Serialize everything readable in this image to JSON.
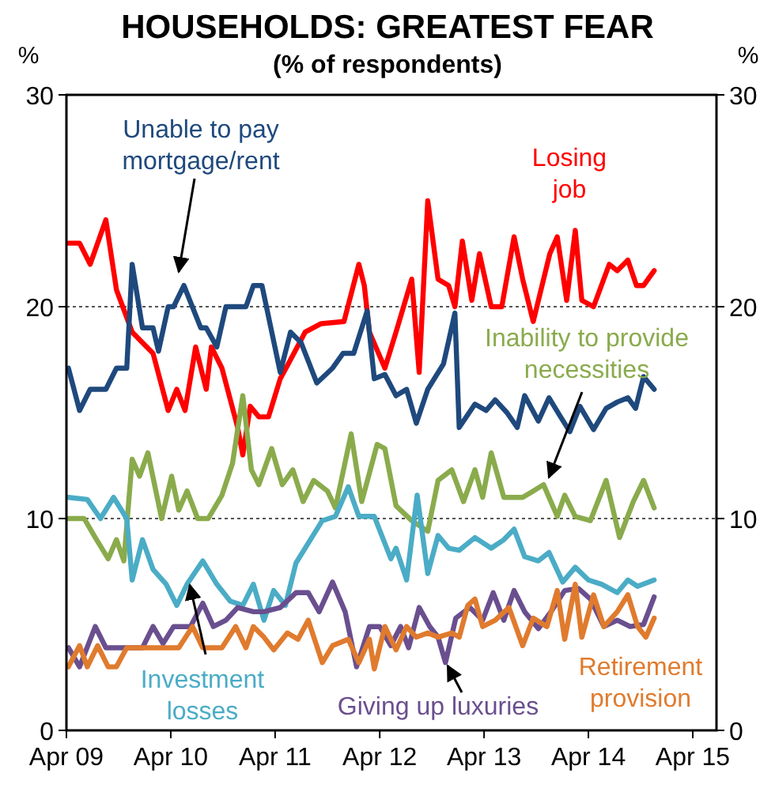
{
  "chart_data": {
    "type": "line",
    "title": "HOUSEHOLDS: GREATEST FEAR",
    "subtitle": "(% of respondents)",
    "ylabel": "%",
    "y2label": "%",
    "xlim": [
      "2009-04-01",
      "2015-06-23"
    ],
    "xticks": [
      {
        "value": "2009-04",
        "label": "Apr 09"
      },
      {
        "value": "2010-04",
        "label": "Apr 10"
      },
      {
        "value": "2011-04",
        "label": "Apr 11"
      },
      {
        "value": "2012-04",
        "label": "Apr 12"
      },
      {
        "value": "2013-04",
        "label": "Apr 13"
      },
      {
        "value": "2014-04",
        "label": "Apr 14"
      },
      {
        "value": "2015-04",
        "label": "Apr 15"
      }
    ],
    "ylim": [
      0,
      30
    ],
    "yticks": [
      0,
      10,
      20,
      30
    ],
    "y2lim": [
      0,
      30
    ],
    "y2ticks": [
      0,
      10,
      20,
      30
    ],
    "grid": "y",
    "marker": "none",
    "line_style": "solid",
    "series": [
      {
        "name": "Losing job",
        "color": "#ff0000",
        "x": [
          "2009-04-08",
          "2009-05-17",
          "2009-06-23",
          "2009-08-17",
          "2009-09-23",
          "2009-11-17",
          "2009-12-23",
          "2010-01-29",
          "2010-03-23",
          "2010-04-22",
          "2010-05-21",
          "2010-06-27",
          "2010-08-03",
          "2010-08-21",
          "2010-09-27",
          "2010-11-21",
          "2010-12-09",
          "2011-01-04",
          "2011-02-03",
          "2011-03-09",
          "2011-04-19",
          "2011-05-21",
          "2011-07-15",
          "2011-09-09",
          "2011-11-28",
          "2012-01-19",
          "2012-02-07",
          "2012-02-25",
          "2012-04-19",
          "2012-05-28",
          "2012-07-22",
          "2012-08-17",
          "2012-09-16",
          "2012-10-22",
          "2012-11-28",
          "2012-12-20",
          "2013-01-15",
          "2013-02-17",
          "2013-03-16",
          "2013-04-26",
          "2013-06-02",
          "2013-07-15",
          "2013-08-14",
          "2013-09-20",
          "2013-11-17",
          "2013-12-13",
          "2014-01-15",
          "2014-02-14",
          "2014-03-09",
          "2014-04-19",
          "2014-06-13",
          "2014-07-11",
          "2014-08-17",
          "2014-09-16",
          "2014-10-11",
          "2014-11-17"
        ],
        "values": [
          23.0,
          23.0,
          22.0,
          24.1,
          20.8,
          18.8,
          18.3,
          17.8,
          15.1,
          16.1,
          15.1,
          18.1,
          16.1,
          18.1,
          17.1,
          14.3,
          13.0,
          15.3,
          14.8,
          14.8,
          16.6,
          17.4,
          18.8,
          19.2,
          19.3,
          22.0,
          21.0,
          18.8,
          17.1,
          18.8,
          21.3,
          16.9,
          25.0,
          21.3,
          21.0,
          20.0,
          23.1,
          20.3,
          22.5,
          20.0,
          20.0,
          23.3,
          21.3,
          19.3,
          22.5,
          23.3,
          20.3,
          23.6,
          20.3,
          20.0,
          22.0,
          21.7,
          22.2,
          21.0,
          21.0,
          21.7
        ]
      },
      {
        "name": "Unable to pay mortgage/rent",
        "color": "#1f497d",
        "x": [
          "2009-04-08",
          "2009-05-17",
          "2009-06-23",
          "2009-08-17",
          "2009-09-23",
          "2009-10-29",
          "2009-11-17",
          "2009-12-23",
          "2010-01-29",
          "2010-02-17",
          "2010-03-23",
          "2010-04-11",
          "2010-05-17",
          "2010-07-15",
          "2010-08-03",
          "2010-09-09",
          "2010-10-11",
          "2010-12-20",
          "2011-01-15",
          "2011-02-14",
          "2011-04-19",
          "2011-05-25",
          "2011-07-01",
          "2011-08-25",
          "2011-10-19",
          "2011-11-25",
          "2012-01-01",
          "2012-02-17",
          "2012-03-13",
          "2012-04-19",
          "2012-05-28",
          "2012-07-04",
          "2012-08-07",
          "2012-09-16",
          "2012-11-10",
          "2012-12-20",
          "2013-01-04",
          "2013-02-28",
          "2013-04-08",
          "2013-05-10",
          "2013-06-20",
          "2013-07-26",
          "2013-08-21",
          "2013-10-08",
          "2013-11-14",
          "2013-12-20",
          "2014-01-26",
          "2014-03-02",
          "2014-04-19",
          "2014-06-02",
          "2014-07-11",
          "2014-08-17",
          "2014-09-13",
          "2014-10-11",
          "2014-11-17"
        ],
        "values": [
          17.1,
          15.1,
          16.1,
          16.1,
          17.1,
          17.1,
          22.0,
          19.0,
          19.0,
          17.9,
          20.0,
          20.0,
          21.0,
          19.0,
          19.0,
          18.1,
          20.0,
          20.0,
          21.0,
          21.0,
          16.9,
          18.8,
          18.3,
          16.4,
          17.1,
          17.8,
          17.8,
          19.8,
          16.6,
          16.8,
          15.8,
          16.1,
          14.5,
          16.1,
          17.3,
          19.7,
          14.3,
          15.4,
          15.1,
          15.6,
          15.0,
          14.3,
          15.8,
          14.6,
          15.7,
          14.9,
          14.1,
          15.3,
          14.2,
          15.2,
          15.5,
          15.7,
          15.2,
          16.7,
          16.1
        ]
      },
      {
        "name": "Inability to provide necessities",
        "color": "#8aab4c",
        "x": [
          "2009-04-08",
          "2009-06-02",
          "2009-07-11",
          "2009-08-25",
          "2009-09-23",
          "2009-10-19",
          "2009-11-17",
          "2009-12-13",
          "2010-01-11",
          "2010-02-28",
          "2010-04-04",
          "2010-04-29",
          "2010-05-28",
          "2010-07-04",
          "2010-08-10",
          "2010-09-27",
          "2010-11-03",
          "2010-12-09",
          "2011-01-08",
          "2011-02-03",
          "2011-03-20",
          "2011-04-26",
          "2011-06-02",
          "2011-07-08",
          "2011-08-14",
          "2011-10-01",
          "2011-10-29",
          "2011-12-23",
          "2012-01-29",
          "2012-03-23",
          "2012-04-19",
          "2012-05-28",
          "2012-07-22",
          "2012-09-16",
          "2012-10-22",
          "2012-12-09",
          "2013-01-19",
          "2013-02-28",
          "2013-03-27",
          "2013-04-26",
          "2013-06-09",
          "2013-08-14",
          "2013-09-20",
          "2013-10-26",
          "2013-12-13",
          "2014-01-08",
          "2014-02-14",
          "2014-04-08",
          "2014-06-02",
          "2014-07-19",
          "2014-09-05",
          "2014-10-11",
          "2014-11-17"
        ],
        "values": [
          10.0,
          10.0,
          9.1,
          8.1,
          9.0,
          8.0,
          12.8,
          12.0,
          13.1,
          10.0,
          12.0,
          10.4,
          11.3,
          10.0,
          10.0,
          11.1,
          12.6,
          15.8,
          12.3,
          11.6,
          13.3,
          11.6,
          12.3,
          10.8,
          11.8,
          11.3,
          10.5,
          14.0,
          10.8,
          13.5,
          13.3,
          10.6,
          9.9,
          9.4,
          11.8,
          12.3,
          10.8,
          12.3,
          11.0,
          13.1,
          11.0,
          11.0,
          11.3,
          11.6,
          10.1,
          11.1,
          10.1,
          9.9,
          11.8,
          9.1,
          10.8,
          11.8,
          10.5
        ]
      },
      {
        "name": "Investment losses",
        "color": "#4bacc6",
        "x": [
          "2009-04-08",
          "2009-06-13",
          "2009-07-29",
          "2009-09-13",
          "2009-10-29",
          "2009-11-17",
          "2009-12-23",
          "2010-01-29",
          "2010-03-16",
          "2010-04-22",
          "2010-05-28",
          "2010-07-22",
          "2010-09-09",
          "2010-10-26",
          "2010-12-09",
          "2011-01-15",
          "2011-02-21",
          "2011-03-27",
          "2011-05-07",
          "2011-06-13",
          "2011-08-07",
          "2011-09-13",
          "2011-10-29",
          "2011-12-13",
          "2012-01-19",
          "2012-03-13",
          "2012-05-10",
          "2012-05-28",
          "2012-07-04",
          "2012-08-10",
          "2012-09-16",
          "2012-10-22",
          "2012-11-28",
          "2013-01-04",
          "2013-02-28",
          "2013-04-26",
          "2013-06-09",
          "2013-07-15",
          "2013-08-21",
          "2013-10-08",
          "2013-11-14",
          "2014-01-01",
          "2014-02-14",
          "2014-04-01",
          "2014-05-17",
          "2014-07-11",
          "2014-08-17",
          "2014-09-20",
          "2014-11-17"
        ],
        "values": [
          11.0,
          10.9,
          10.0,
          11.0,
          10.0,
          7.1,
          9.0,
          7.6,
          6.9,
          5.9,
          6.9,
          8.0,
          6.9,
          6.1,
          5.9,
          6.9,
          5.2,
          6.6,
          5.9,
          7.9,
          9.1,
          9.9,
          10.1,
          11.5,
          10.1,
          10.1,
          8.1,
          8.6,
          7.1,
          11.1,
          7.4,
          9.2,
          8.6,
          8.5,
          9.1,
          8.6,
          9.0,
          9.5,
          8.2,
          8.0,
          8.4,
          7.0,
          7.7,
          7.1,
          6.9,
          6.5,
          7.1,
          6.8,
          7.1
        ]
      },
      {
        "name": "Giving up luxuries",
        "color": "#6a4f8f",
        "x": [
          "2009-04-08",
          "2009-05-17",
          "2009-07-11",
          "2009-08-17",
          "2009-10-29",
          "2009-12-23",
          "2010-01-29",
          "2010-03-05",
          "2010-04-11",
          "2010-06-09",
          "2010-07-22",
          "2010-08-28",
          "2010-10-11",
          "2010-11-21",
          "2011-01-15",
          "2011-02-21",
          "2011-04-19",
          "2011-06-13",
          "2011-07-26",
          "2011-09-02",
          "2011-10-19",
          "2011-12-02",
          "2012-01-11",
          "2012-02-25",
          "2012-04-01",
          "2012-05-10",
          "2012-06-13",
          "2012-07-11",
          "2012-08-17",
          "2012-09-23",
          "2012-10-22",
          "2012-11-17",
          "2012-12-23",
          "2013-02-10",
          "2013-03-27",
          "2013-05-03",
          "2013-06-09",
          "2013-07-15",
          "2013-08-21",
          "2013-10-08",
          "2013-11-21",
          "2014-01-08",
          "2014-02-25",
          "2014-04-08",
          "2014-05-25",
          "2014-07-11",
          "2014-08-25",
          "2014-10-11",
          "2014-11-17"
        ],
        "values": [
          3.9,
          3.0,
          4.9,
          3.9,
          3.9,
          3.9,
          4.9,
          4.1,
          4.9,
          4.9,
          6.0,
          4.9,
          5.2,
          5.8,
          5.6,
          5.6,
          5.8,
          6.5,
          6.5,
          5.6,
          7.0,
          5.6,
          3.0,
          4.9,
          4.9,
          4.0,
          4.9,
          3.9,
          5.8,
          4.9,
          4.4,
          3.2,
          5.3,
          5.8,
          5.2,
          6.5,
          5.2,
          6.6,
          5.6,
          4.8,
          5.6,
          6.6,
          6.7,
          6.2,
          4.9,
          5.2,
          4.9,
          5.0,
          6.3
        ]
      },
      {
        "name": "Retirement provision",
        "color": "#e07b2e",
        "x": [
          "2009-04-08",
          "2009-05-17",
          "2009-06-13",
          "2009-07-19",
          "2009-08-25",
          "2009-09-23",
          "2009-10-29",
          "2009-12-23",
          "2010-02-17",
          "2010-04-29",
          "2010-06-16",
          "2010-07-22",
          "2010-09-27",
          "2010-11-14",
          "2010-12-20",
          "2011-01-15",
          "2011-02-21",
          "2011-03-27",
          "2011-05-14",
          "2011-06-20",
          "2011-07-26",
          "2011-09-13",
          "2011-10-19",
          "2011-12-13",
          "2012-01-19",
          "2012-02-25",
          "2012-03-13",
          "2012-04-19",
          "2012-05-28",
          "2012-07-04",
          "2012-08-07",
          "2012-09-16",
          "2012-10-22",
          "2012-12-09",
          "2013-01-04",
          "2013-02-03",
          "2013-02-28",
          "2013-03-27",
          "2013-05-10",
          "2013-06-27",
          "2013-08-14",
          "2013-09-20",
          "2013-11-07",
          "2013-12-13",
          "2014-01-08",
          "2014-02-14",
          "2014-03-09",
          "2014-04-19",
          "2014-05-25",
          "2014-07-11",
          "2014-08-17",
          "2014-09-20",
          "2014-10-19",
          "2014-11-17"
        ],
        "values": [
          3.0,
          4.0,
          3.0,
          4.0,
          3.0,
          3.0,
          3.9,
          3.9,
          3.9,
          3.9,
          4.9,
          3.9,
          3.9,
          4.9,
          3.9,
          4.9,
          4.4,
          3.8,
          4.6,
          4.3,
          5.2,
          3.2,
          4.0,
          4.3,
          3.2,
          4.3,
          2.9,
          4.9,
          3.8,
          4.9,
          4.4,
          4.6,
          4.4,
          4.6,
          4.4,
          5.9,
          6.2,
          4.9,
          5.2,
          5.8,
          4.0,
          5.3,
          4.9,
          6.6,
          4.3,
          6.9,
          4.4,
          6.4,
          4.9,
          5.6,
          6.4,
          4.9,
          4.4,
          5.3
        ]
      }
    ]
  }
}
